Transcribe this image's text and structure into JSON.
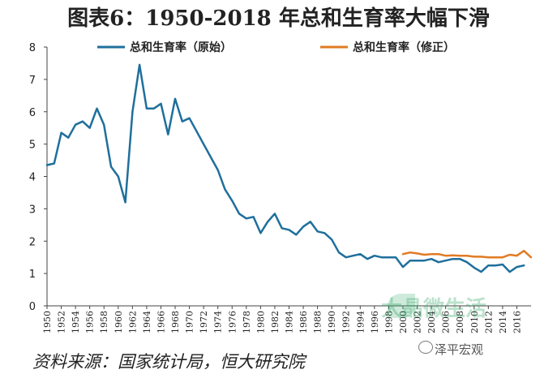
{
  "title": "图表6：1950-2018 年总和生育率大幅下滑",
  "source": "资料来源：国家统计局，恒大研究院",
  "watermark_brand": "泽平宏观",
  "watermark_green": "大晶微生活",
  "colors": {
    "original": "#1f6f9c",
    "revised": "#e07b22",
    "axis": "#444444"
  },
  "chart_data": {
    "type": "line",
    "title": "图表6：1950-2018 年总和生育率大幅下滑",
    "xlabel": "",
    "ylabel": "",
    "xlim": [
      1950,
      2018
    ],
    "ylim": [
      0,
      8
    ],
    "y_ticks": [
      0,
      1,
      2,
      3,
      4,
      5,
      6,
      7,
      8
    ],
    "x_ticks": [
      1950,
      1952,
      1954,
      1956,
      1958,
      1960,
      1962,
      1964,
      1966,
      1968,
      1970,
      1972,
      1974,
      1976,
      1978,
      1980,
      1982,
      1984,
      1986,
      1988,
      1990,
      1992,
      1994,
      1996,
      1998,
      2000,
      2002,
      2004,
      2006,
      2008,
      2010,
      2012,
      2014,
      2016
    ],
    "legend": "top",
    "series": [
      {
        "name": "总和生育率（原始）",
        "color": "#1f6f9c",
        "x": [
          1950,
          1951,
          1952,
          1953,
          1954,
          1955,
          1956,
          1957,
          1958,
          1959,
          1960,
          1961,
          1962,
          1963,
          1964,
          1965,
          1966,
          1967,
          1968,
          1969,
          1970,
          1971,
          1972,
          1973,
          1974,
          1975,
          1976,
          1977,
          1978,
          1979,
          1980,
          1981,
          1982,
          1983,
          1984,
          1985,
          1986,
          1987,
          1988,
          1989,
          1990,
          1991,
          1992,
          1993,
          1994,
          1995,
          1996,
          1997,
          1998,
          1999,
          2000,
          2001,
          2002,
          2003,
          2004,
          2005,
          2006,
          2007,
          2008,
          2009,
          2010,
          2011,
          2012,
          2013,
          2014,
          2015,
          2016,
          2017
        ],
        "values": [
          4.35,
          4.4,
          5.35,
          5.2,
          5.6,
          5.7,
          5.5,
          6.1,
          5.6,
          4.3,
          4.0,
          3.2,
          6.0,
          7.45,
          6.1,
          6.1,
          6.25,
          5.3,
          6.4,
          5.7,
          5.8,
          5.4,
          5.0,
          4.6,
          4.2,
          3.6,
          3.25,
          2.85,
          2.7,
          2.75,
          2.25,
          2.6,
          2.85,
          2.4,
          2.35,
          2.2,
          2.45,
          2.6,
          2.3,
          2.25,
          2.05,
          1.65,
          1.5,
          1.55,
          1.6,
          1.45,
          1.55,
          1.5,
          1.5,
          1.5,
          1.2,
          1.4,
          1.4,
          1.4,
          1.45,
          1.35,
          1.4,
          1.45,
          1.45,
          1.35,
          1.18,
          1.05,
          1.25,
          1.25,
          1.28,
          1.05,
          1.2,
          1.25
        ]
      },
      {
        "name": "总和生育率（修正）",
        "color": "#e07b22",
        "x": [
          2000,
          2001,
          2002,
          2003,
          2004,
          2005,
          2006,
          2007,
          2008,
          2009,
          2010,
          2011,
          2012,
          2013,
          2014,
          2015,
          2016,
          2017,
          2018
        ],
        "values": [
          1.6,
          1.65,
          1.62,
          1.58,
          1.6,
          1.6,
          1.55,
          1.56,
          1.55,
          1.55,
          1.52,
          1.52,
          1.5,
          1.5,
          1.5,
          1.58,
          1.55,
          1.7,
          1.5
        ]
      }
    ]
  }
}
